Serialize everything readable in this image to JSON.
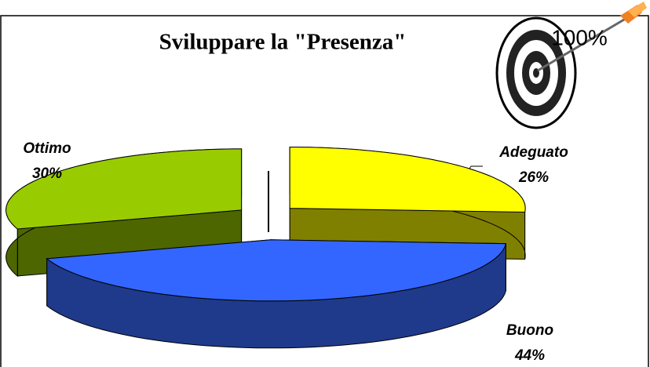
{
  "chart_data": {
    "type": "pie3d",
    "title": "Sviluppare la \"Presenza\"",
    "icon_label": "100%",
    "categories": [
      "Adeguato",
      "Buono",
      "Ottimo"
    ],
    "values": [
      26,
      44,
      30
    ],
    "value_labels": [
      "26%",
      "44%",
      "30%"
    ],
    "colors": [
      "#ffff00",
      "#3366ff",
      "#99cc00"
    ],
    "side_colors": [
      "#808000",
      "#1f3a8a",
      "#4d6600"
    ]
  }
}
